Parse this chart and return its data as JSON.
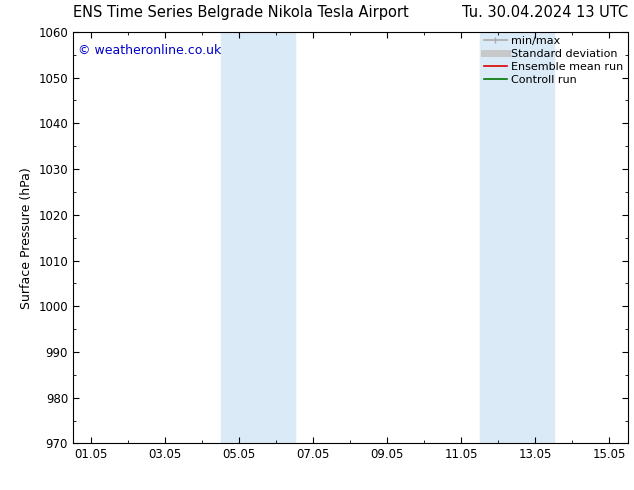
{
  "title_left": "ENS Time Series Belgrade Nikola Tesla Airport",
  "title_right": "Tu. 30.04.2024 13 UTC",
  "ylabel": "Surface Pressure (hPa)",
  "ylim": [
    970,
    1060
  ],
  "yticks": [
    970,
    980,
    990,
    1000,
    1010,
    1020,
    1030,
    1040,
    1050,
    1060
  ],
  "xtick_labels": [
    "01.05",
    "03.05",
    "05.05",
    "07.05",
    "09.05",
    "11.05",
    "13.05",
    "15.05"
  ],
  "xtick_positions": [
    0,
    2,
    4,
    6,
    8,
    10,
    12,
    14
  ],
  "xlim": [
    -0.5,
    14.5
  ],
  "shaded_bands": [
    {
      "xmin": 3.5,
      "xmax": 5.5,
      "color": "#daeaf7"
    },
    {
      "xmin": 10.5,
      "xmax": 12.5,
      "color": "#daeaf7"
    }
  ],
  "copyright_text": "© weatheronline.co.uk",
  "copyright_color": "#0000cc",
  "background_color": "#ffffff",
  "legend_items": [
    {
      "label": "min/max",
      "color": "#aaaaaa",
      "lw": 1.2
    },
    {
      "label": "Standard deviation",
      "color": "#c8c8c8",
      "lw": 5
    },
    {
      "label": "Ensemble mean run",
      "color": "#dd0000",
      "lw": 1.2
    },
    {
      "label": "Controll run",
      "color": "#007700",
      "lw": 1.2
    }
  ],
  "title_fontsize": 10.5,
  "axis_label_fontsize": 9,
  "tick_fontsize": 8.5,
  "legend_fontsize": 8,
  "copyright_fontsize": 9
}
